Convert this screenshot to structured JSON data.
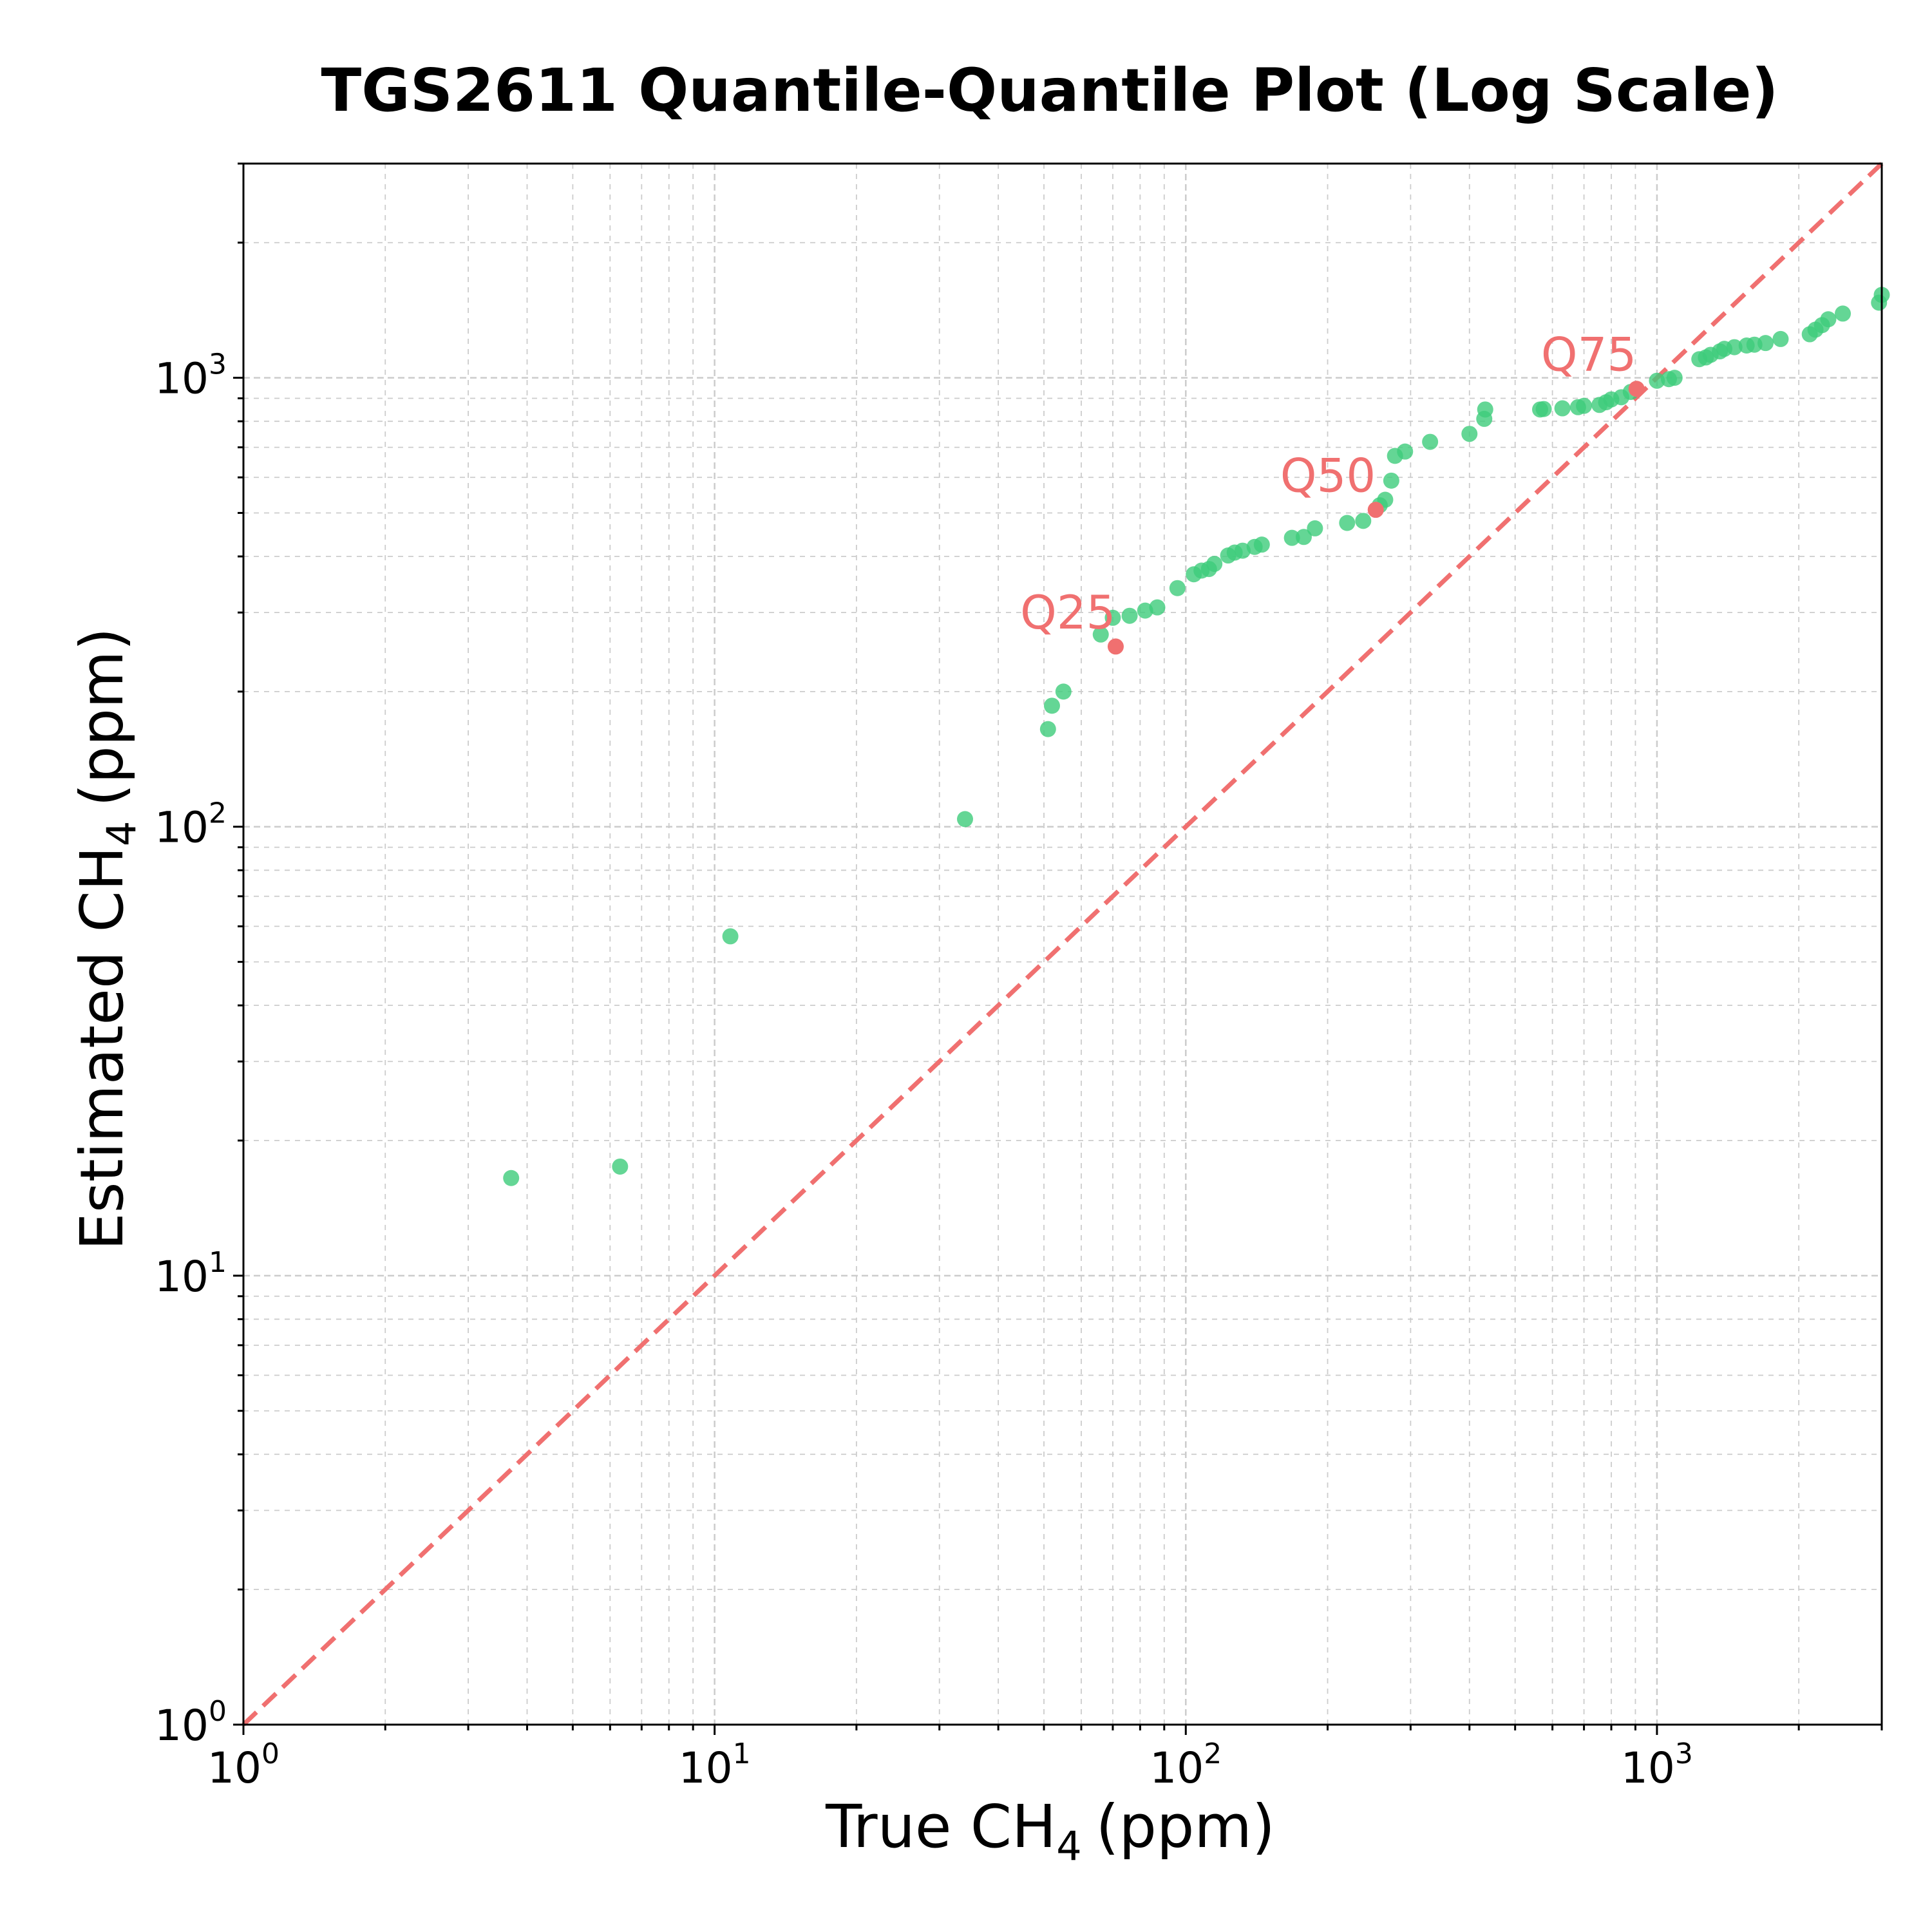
{
  "chart_data": {
    "type": "scatter",
    "title": "TGS2611 Quantile-Quantile Plot (Log Scale)",
    "xlabel": "True CH",
    "xlabel_sub": "4",
    "xlabel_unit": "(ppm)",
    "ylabel": "Estimated CH",
    "ylabel_sub": "4",
    "ylabel_unit": "(ppm)",
    "xscale": "log",
    "yscale": "log",
    "xlim": [
      1,
      3000
    ],
    "ylim": [
      1,
      3000
    ],
    "grid": true,
    "x_ticks": [
      {
        "base": "10",
        "exp": "0",
        "value": 1
      },
      {
        "base": "10",
        "exp": "1",
        "value": 10
      },
      {
        "base": "10",
        "exp": "2",
        "value": 100
      },
      {
        "base": "10",
        "exp": "3",
        "value": 1000
      }
    ],
    "y_ticks": [
      {
        "base": "10",
        "exp": "0",
        "value": 1
      },
      {
        "base": "10",
        "exp": "1",
        "value": 10
      },
      {
        "base": "10",
        "exp": "2",
        "value": 100
      },
      {
        "base": "10",
        "exp": "3",
        "value": 1000
      }
    ],
    "reference_line": {
      "style": "dashed",
      "color": "#f07070",
      "x": [
        1,
        3000
      ],
      "y": [
        1,
        3000
      ]
    },
    "point_color": "#3dcc7a",
    "quantile_color": "#f07070",
    "points": [
      [
        3.7,
        16.5
      ],
      [
        6.3,
        17.5
      ],
      [
        10.8,
        57
      ],
      [
        34,
        104
      ],
      [
        51,
        165
      ],
      [
        52,
        186
      ],
      [
        55,
        200
      ],
      [
        66,
        268
      ],
      [
        70,
        292
      ],
      [
        76,
        295
      ],
      [
        82,
        303
      ],
      [
        87,
        308
      ],
      [
        96,
        340
      ],
      [
        104,
        365
      ],
      [
        108,
        372
      ],
      [
        112,
        375
      ],
      [
        115,
        385
      ],
      [
        123,
        402
      ],
      [
        127,
        408
      ],
      [
        132,
        412
      ],
      [
        140,
        420
      ],
      [
        145,
        425
      ],
      [
        168,
        440
      ],
      [
        178,
        442
      ],
      [
        188,
        462
      ],
      [
        220,
        475
      ],
      [
        238,
        480
      ],
      [
        258,
        520
      ],
      [
        265,
        535
      ],
      [
        273,
        590
      ],
      [
        278,
        670
      ],
      [
        292,
        685
      ],
      [
        330,
        720
      ],
      [
        400,
        750
      ],
      [
        430,
        810
      ],
      [
        432,
        850
      ],
      [
        565,
        850
      ],
      [
        575,
        852
      ],
      [
        630,
        855
      ],
      [
        680,
        860
      ],
      [
        700,
        866
      ],
      [
        755,
        870
      ],
      [
        780,
        882
      ],
      [
        800,
        895
      ],
      [
        840,
        905
      ],
      [
        880,
        930
      ],
      [
        1000,
        985
      ],
      [
        1060,
        993
      ],
      [
        1090,
        1000
      ],
      [
        1230,
        1100
      ],
      [
        1270,
        1110
      ],
      [
        1300,
        1125
      ],
      [
        1360,
        1145
      ],
      [
        1390,
        1160
      ],
      [
        1460,
        1170
      ],
      [
        1550,
        1180
      ],
      [
        1610,
        1185
      ],
      [
        1700,
        1195
      ],
      [
        1830,
        1220
      ],
      [
        2110,
        1250
      ],
      [
        2170,
        1280
      ],
      [
        2240,
        1310
      ],
      [
        2310,
        1350
      ],
      [
        2480,
        1390
      ],
      [
        2960,
        1470
      ],
      [
        3000,
        1530
      ]
    ],
    "quantiles": [
      {
        "label": "Q25",
        "x": 71,
        "y": 252
      },
      {
        "label": "Q50",
        "x": 253,
        "y": 508
      },
      {
        "label": "Q75",
        "x": 905,
        "y": 945
      }
    ]
  }
}
